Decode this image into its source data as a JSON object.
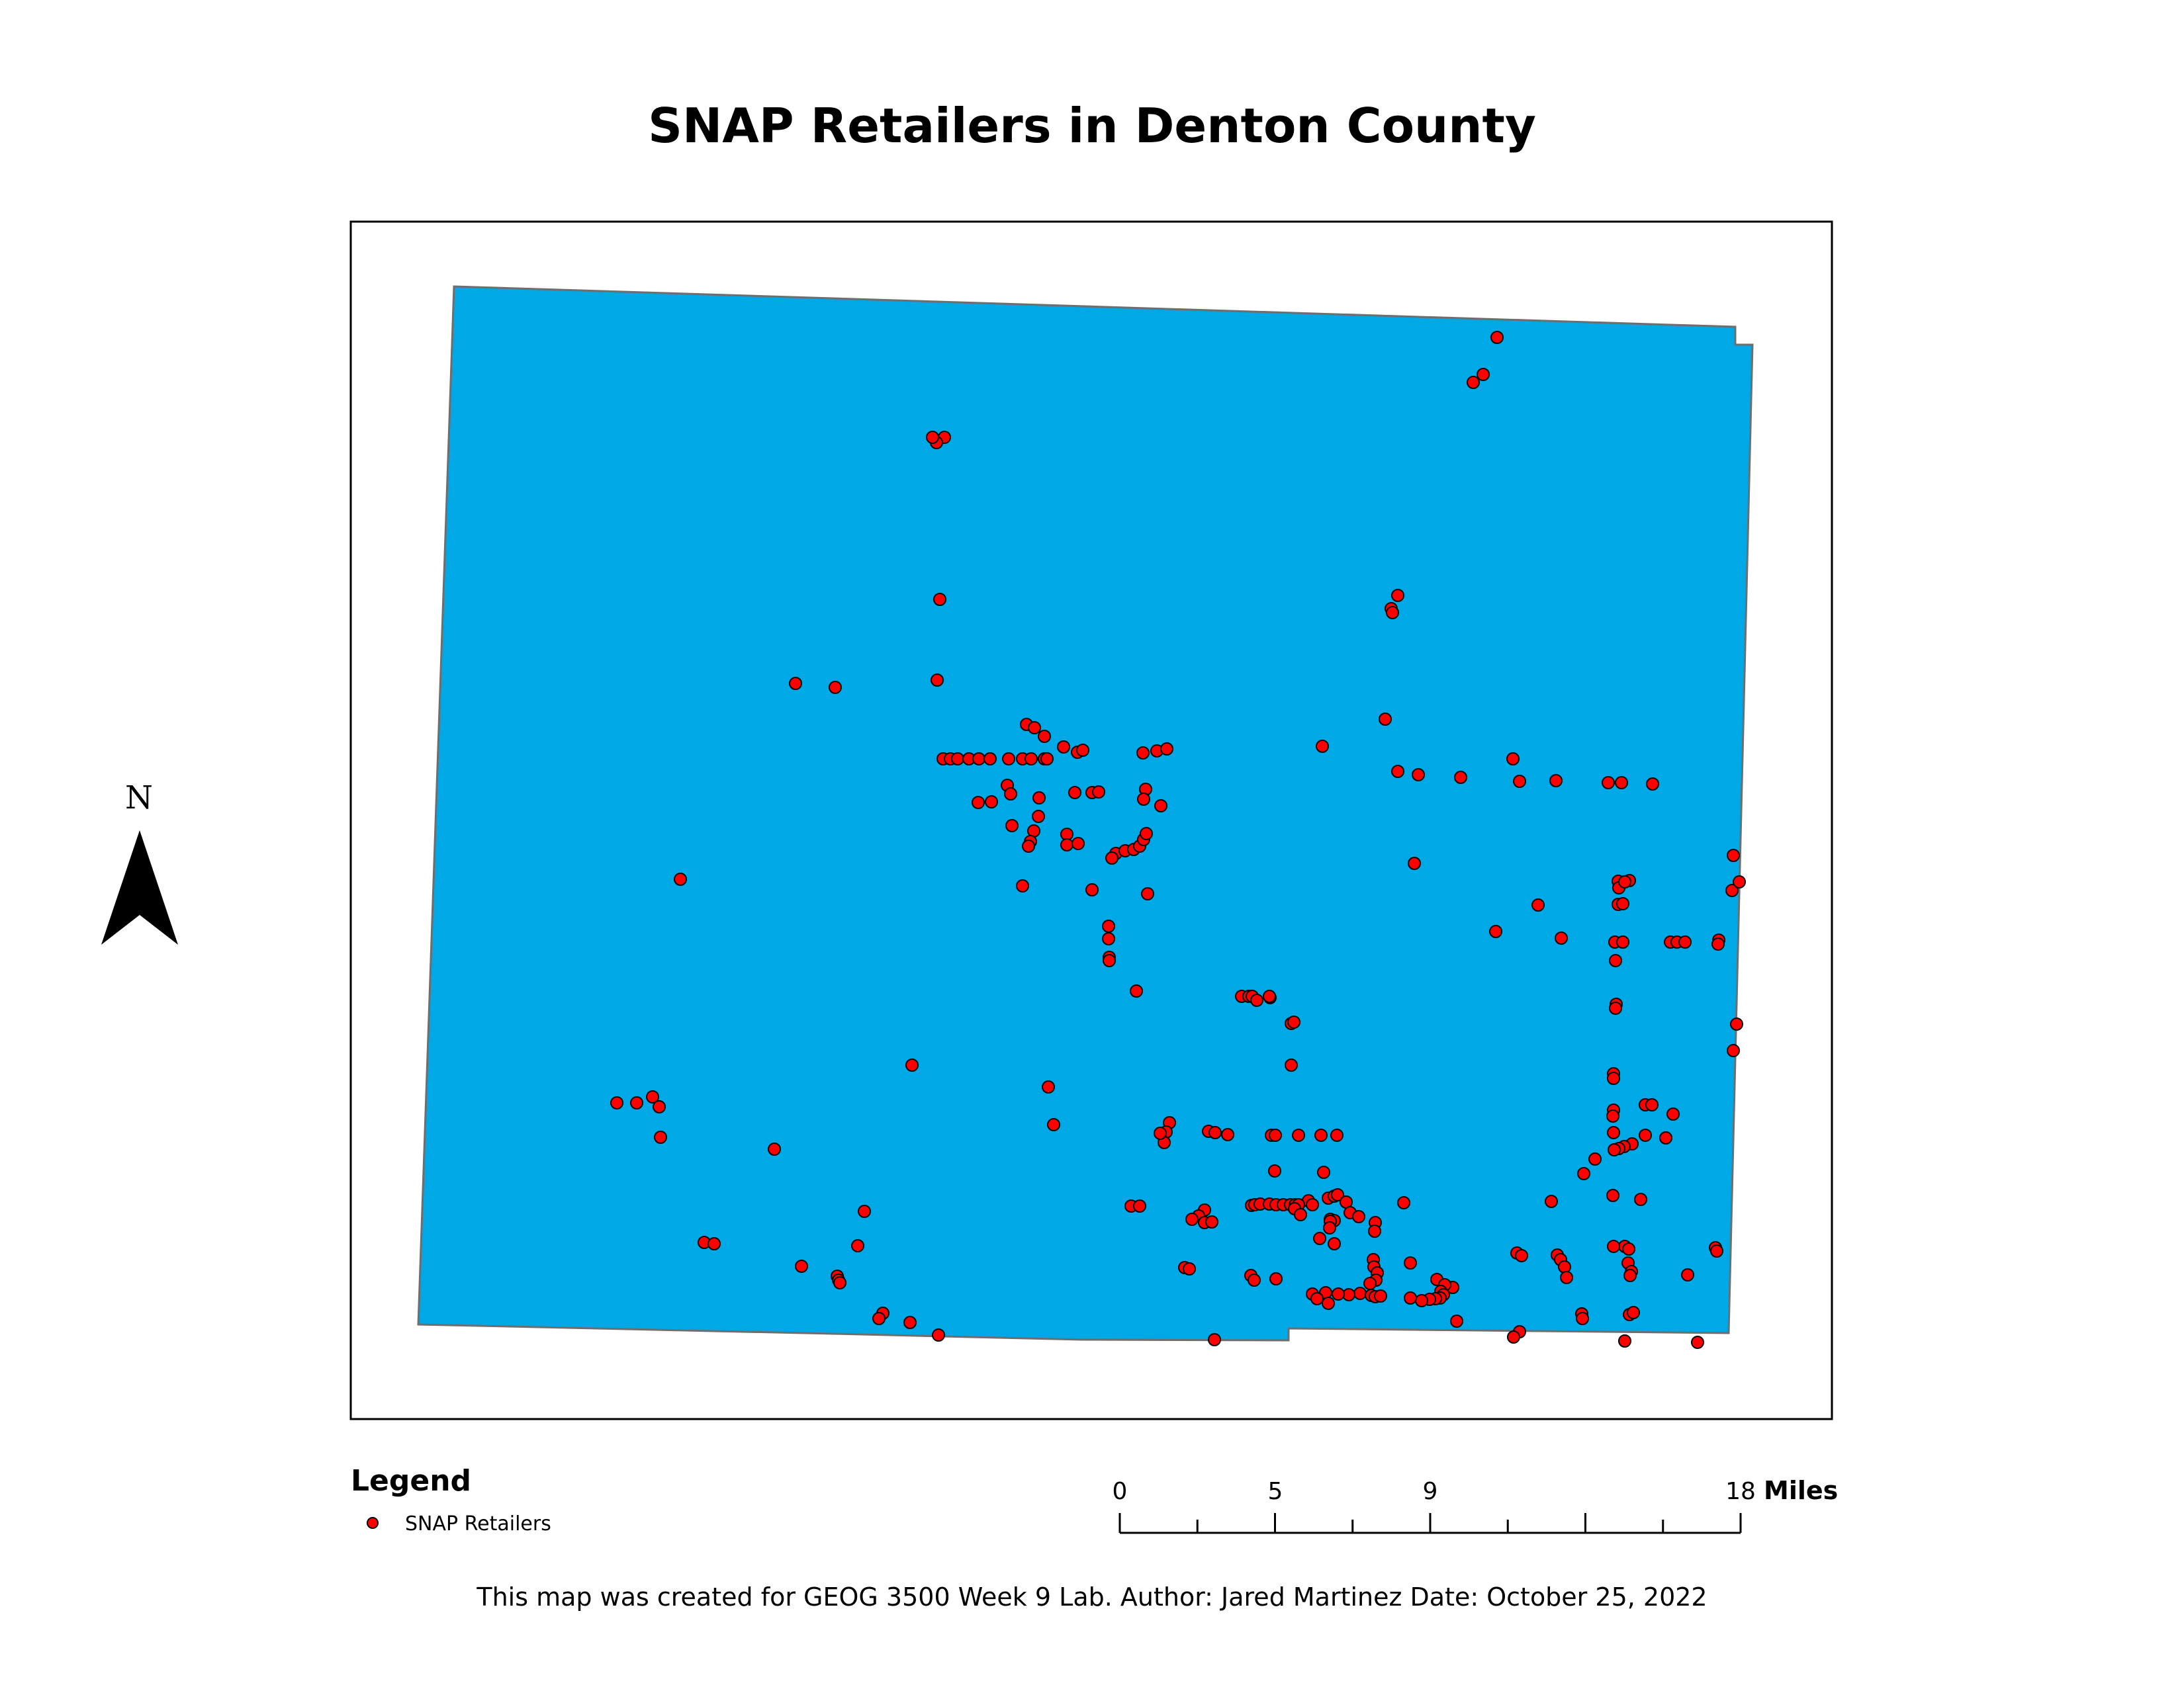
{
  "title": "SNAP Retailers in Denton County",
  "north_arrow": {
    "label": "N"
  },
  "legend": {
    "heading": "Legend",
    "items": [
      {
        "label": "SNAP Retailers",
        "symbol": "red-circle-icon"
      }
    ]
  },
  "scale_bar": {
    "tick_labels": [
      "0",
      "5",
      "9",
      "18"
    ],
    "units": "Miles"
  },
  "credit": "This map was created for GEOG 3500 Week 9 Lab. Author: Jared Martinez Date: October 25, 2022",
  "colors": {
    "county_fill": "#00a8e6",
    "county_outline": "#6e6e6e",
    "retailer_fill": "#ff0000",
    "retailer_outline": "#000000",
    "frame": "#000000"
  }
}
